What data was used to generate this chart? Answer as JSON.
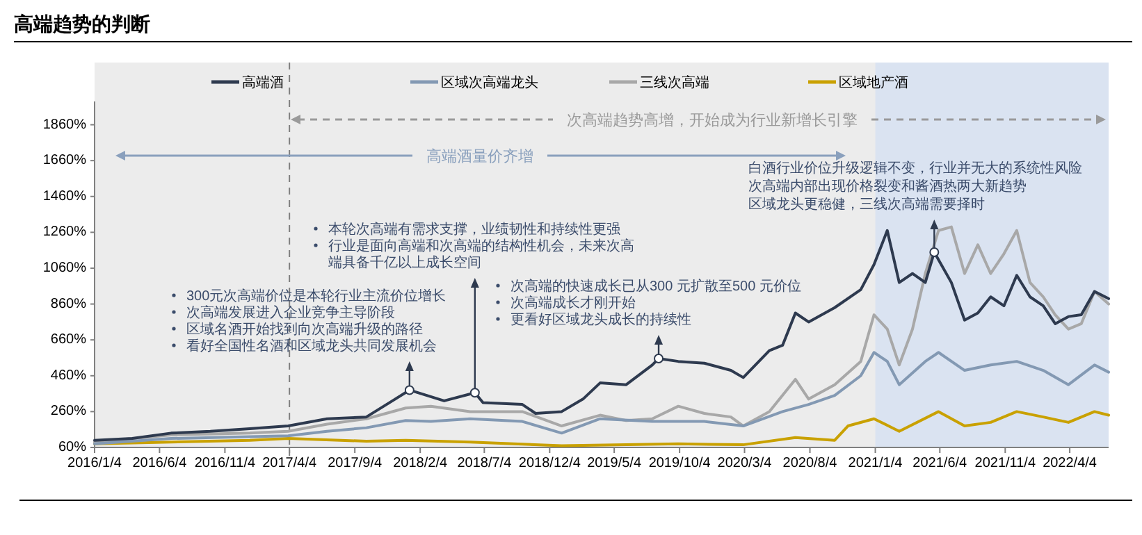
{
  "chart_data": {
    "type": "line",
    "title": "高端趋势的判断",
    "xlim": [
      "2016-01-04",
      "2022-07-04"
    ],
    "xticks": [
      {
        "value": "2016-01-04",
        "label": "2016/1/4"
      },
      {
        "value": "2016-06-04",
        "label": "2016/6/4"
      },
      {
        "value": "2016-11-04",
        "label": "2016/11/4"
      },
      {
        "value": "2017-04-04",
        "label": "2017/4/4"
      },
      {
        "value": "2017-09-04",
        "label": "2017/9/4"
      },
      {
        "value": "2018-02-04",
        "label": "2018/2/4"
      },
      {
        "value": "2018-07-04",
        "label": "2018/7/4"
      },
      {
        "value": "2018-12-04",
        "label": "2018/12/4"
      },
      {
        "value": "2019-05-04",
        "label": "2019/5/4"
      },
      {
        "value": "2019-10-04",
        "label": "2019/10/4"
      },
      {
        "value": "2020-03-04",
        "label": "2020/3/4"
      },
      {
        "value": "2020-08-04",
        "label": "2020/8/4"
      },
      {
        "value": "2021-01-04",
        "label": "2021/1/4"
      },
      {
        "value": "2021-06-04",
        "label": "2021/6/4"
      },
      {
        "value": "2021-11-04",
        "label": "2021/11/4"
      },
      {
        "value": "2022-04-04",
        "label": "2022/4/4"
      }
    ],
    "ylim": [
      60,
      1990
    ],
    "yticks": [
      {
        "value": 60,
        "label": "60%"
      },
      {
        "value": 260,
        "label": "260%"
      },
      {
        "value": 460,
        "label": "460%"
      },
      {
        "value": 660,
        "label": "660%"
      },
      {
        "value": 860,
        "label": "860%"
      },
      {
        "value": 1060,
        "label": "1060%"
      },
      {
        "value": 1260,
        "label": "1260%"
      },
      {
        "value": 1460,
        "label": "1460%"
      },
      {
        "value": 1660,
        "label": "1660%"
      },
      {
        "value": 1860,
        "label": "1860%"
      }
    ],
    "legend": "top",
    "grid": false,
    "series": [
      {
        "name": "高端酒",
        "color": "#2e3a4f",
        "x": [
          "2016-01-04",
          "2016-04",
          "2016-07",
          "2016-10",
          "2017-01",
          "2017-04",
          "2017-07",
          "2017-10",
          "2017-12",
          "2018-01-10",
          "2018-04",
          "2018-06-12",
          "2018-07",
          "2018-10",
          "2018-11",
          "2019-01",
          "2019-02-20",
          "2019-04",
          "2019-06",
          "2019-08",
          "2019-08-16",
          "2019-10",
          "2019-12",
          "2020-02",
          "2020-03",
          "2020-05",
          "2020-06",
          "2020-07",
          "2020-08",
          "2020-10",
          "2020-12",
          "2021-01",
          "2021-02",
          "2021-03",
          "2021-04",
          "2021-05",
          "2021-05-22",
          "2021-07",
          "2021-08",
          "2021-09",
          "2021-10",
          "2021-11",
          "2021-12",
          "2022-01",
          "2022-02",
          "2022-03",
          "2022-04",
          "2022-05",
          "2022-06",
          "2022-07-04"
        ],
        "values": [
          100,
          110,
          140,
          150,
          165,
          180,
          220,
          230,
          320,
          380,
          320,
          365,
          310,
          300,
          250,
          260,
          330,
          420,
          410,
          520,
          556,
          540,
          530,
          490,
          450,
          600,
          630,
          810,
          760,
          840,
          940,
          1080,
          1270,
          980,
          1030,
          980,
          1149,
          980,
          770,
          810,
          900,
          850,
          1020,
          900,
          850,
          750,
          790,
          800,
          930,
          890
        ]
      },
      {
        "name": "区域次高端龙头",
        "color": "#8399b3",
        "x": [
          "2016-01-04",
          "2016-07",
          "2017-01",
          "2017-04",
          "2017-07",
          "2017-10",
          "2018-01",
          "2018-03",
          "2018-06",
          "2018-10",
          "2019-01",
          "2019-04",
          "2019-08",
          "2019-12",
          "2020-03",
          "2020-06",
          "2020-08",
          "2020-10",
          "2020-12",
          "2021-01",
          "2021-02",
          "2021-03",
          "2021-05",
          "2021-06",
          "2021-08",
          "2021-10",
          "2021-12",
          "2022-02",
          "2022-04",
          "2022-06",
          "2022-07-04"
        ],
        "values": [
          80,
          110,
          120,
          125,
          150,
          170,
          210,
          205,
          220,
          205,
          140,
          220,
          205,
          205,
          180,
          260,
          300,
          350,
          460,
          590,
          540,
          410,
          540,
          590,
          490,
          520,
          540,
          490,
          410,
          520,
          480
        ]
      },
      {
        "name": "三线次高端",
        "color": "#a8a8a8",
        "x": [
          "2016-01-04",
          "2016-07",
          "2017-01",
          "2017-04",
          "2017-07",
          "2017-10",
          "2018-01",
          "2018-03",
          "2018-06",
          "2018-10",
          "2019-01",
          "2019-04",
          "2019-06",
          "2019-08",
          "2019-10",
          "2019-12",
          "2020-02",
          "2020-03",
          "2020-05",
          "2020-07",
          "2020-08",
          "2020-10",
          "2020-12",
          "2021-01",
          "2021-02",
          "2021-03",
          "2021-04",
          "2021-05",
          "2021-06",
          "2021-07",
          "2021-08",
          "2021-09",
          "2021-10",
          "2021-11",
          "2021-12",
          "2022-01",
          "2022-02",
          "2022-03",
          "2022-04",
          "2022-05",
          "2022-06",
          "2022-07-04"
        ],
        "values": [
          90,
          130,
          140,
          150,
          190,
          220,
          280,
          290,
          260,
          260,
          180,
          240,
          210,
          220,
          290,
          250,
          230,
          180,
          260,
          440,
          330,
          410,
          540,
          800,
          720,
          520,
          720,
          1030,
          1270,
          1290,
          1030,
          1190,
          1030,
          1140,
          1270,
          980,
          900,
          800,
          720,
          750,
          930,
          860
        ]
      },
      {
        "name": "区域地产酒",
        "color": "#c9a100",
        "x": [
          "2016-01-04",
          "2016-07",
          "2017-01",
          "2017-04",
          "2017-10",
          "2018-01",
          "2018-06",
          "2019-01",
          "2019-06",
          "2019-10",
          "2020-03",
          "2020-07",
          "2020-10",
          "2020-11",
          "2021-01",
          "2021-03",
          "2021-06",
          "2021-08",
          "2021-10",
          "2021-12",
          "2022-02",
          "2022-04",
          "2022-06",
          "2022-07-04"
        ],
        "values": [
          80,
          90,
          100,
          110,
          95,
          100,
          90,
          70,
          75,
          80,
          75,
          115,
          100,
          180,
          220,
          150,
          260,
          180,
          200,
          260,
          230,
          200,
          260,
          240
        ]
      }
    ],
    "bands": [
      {
        "axis": "x",
        "from": "2021-01-04",
        "to": "2022-07-04",
        "color": "#dae3f1"
      }
    ],
    "ref_lines": [
      {
        "axis": "x",
        "value": "2017-04-04",
        "color": "#7f7f7f",
        "line_style": "dashed"
      }
    ],
    "annotations": [
      "高端酒量价齐增",
      "次高端趋势高增，开始成为行业新增长引擎",
      "300元次高端价位是本轮行业主流价位增长",
      "次高端发展进入企业竞争主导阶段",
      "区域名酒开始找到向次高端升级的路径",
      {
        "text": "看好全国性名酒和区域龙头共同发展机会",
        "x": "2018-01-10",
        "y": 380
      },
      "本轮次高端有需求支撑，业绩韧性和持续性更强",
      {
        "text": "行业是面向高端和次高端的结构性机会，未来次高端具备千亿以上成长空间",
        "x": "2018-06-12",
        "y": 365
      },
      "次高端的快速成长已从300 元扩散至500 元价位",
      "次高端成长才刚开始",
      {
        "text": "更看好区域龙头成长的持续性",
        "x": "2019-08-16",
        "y": 556
      },
      "白酒行业价位升级逻辑不变，行业并无大的系统性风险",
      "次高端内部出现价格裂变和酱酒热两大新趋势",
      {
        "text": "区域龙头更稳健，三线次高端需要择时",
        "x": "2021-05-22",
        "y": 1149
      }
    ]
  }
}
